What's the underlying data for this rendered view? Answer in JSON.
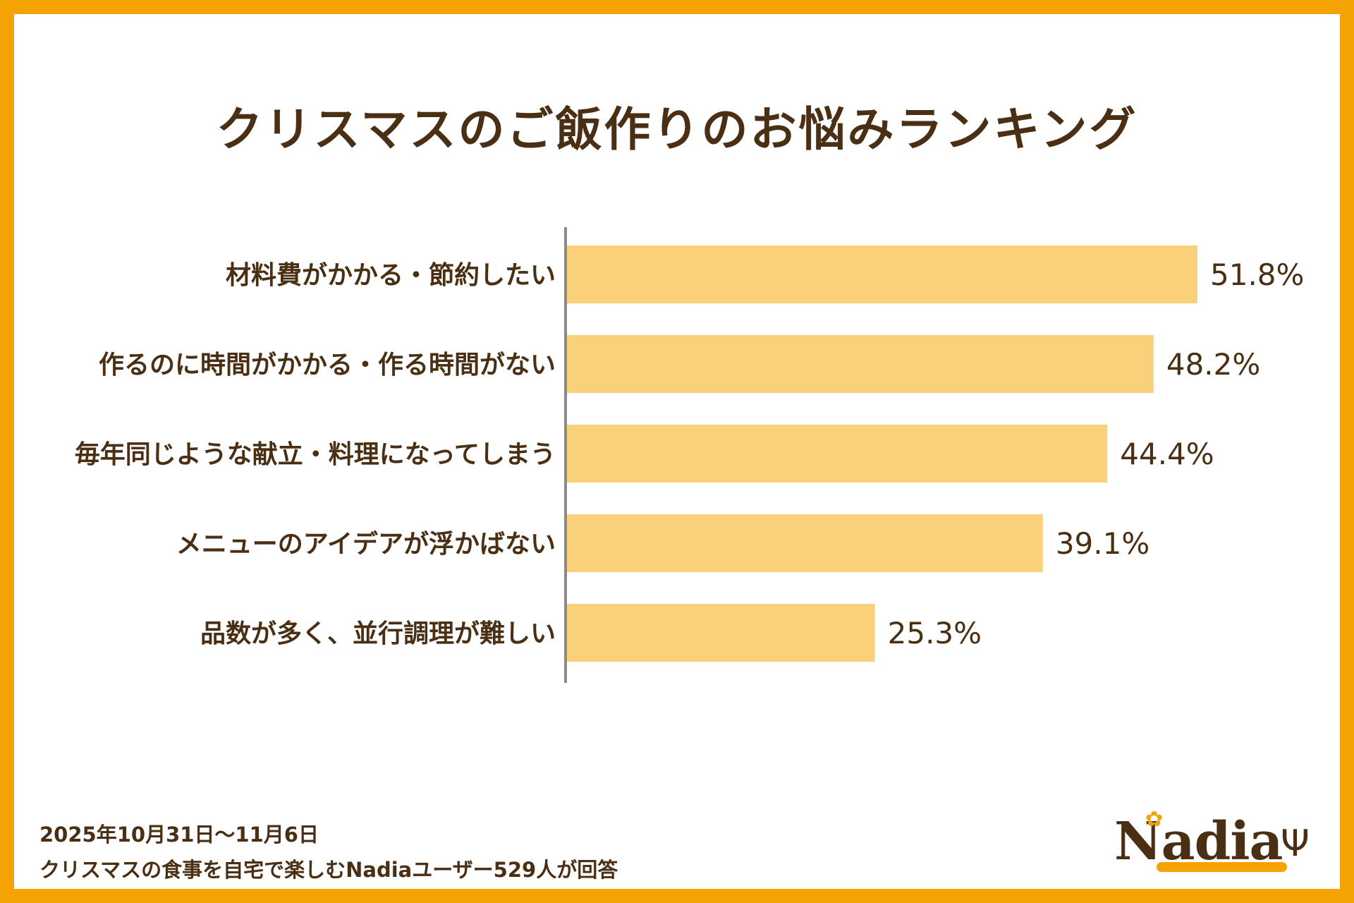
{
  "title": "クリスマスのご飯作りのお悩みランキング",
  "chart_data": {
    "type": "bar",
    "orientation": "horizontal",
    "categories": [
      "材料費がかかる・節約したい",
      "作るのに時間がかかる・作る時間がない",
      "毎年同じような献立・料理になってしまう",
      "メニューのアイデアが浮かばない",
      "品数が多く、並行調理が難しい"
    ],
    "values": [
      51.8,
      48.2,
      44.4,
      39.1,
      25.3
    ],
    "value_labels": [
      "51.8%",
      "48.2%",
      "44.4%",
      "39.1%",
      "25.3%"
    ],
    "unit": "%",
    "title": "クリスマスのご飯作りのお悩みランキング",
    "xlim": [
      0,
      51.8
    ],
    "grid": false,
    "legend": "none"
  },
  "colors": {
    "border": "#f5a205",
    "bar": "#fbd07a",
    "text": "#4a2f14",
    "axis": "#8a8a8a"
  },
  "footnote": {
    "line1": "2025年10月31日～11月6日",
    "line2": "クリスマスの食事を自宅で楽しむNadiaユーザー529人が回答"
  },
  "logo": {
    "text": "Nadia",
    "icons": [
      "flower-icon",
      "fork-icon"
    ]
  }
}
